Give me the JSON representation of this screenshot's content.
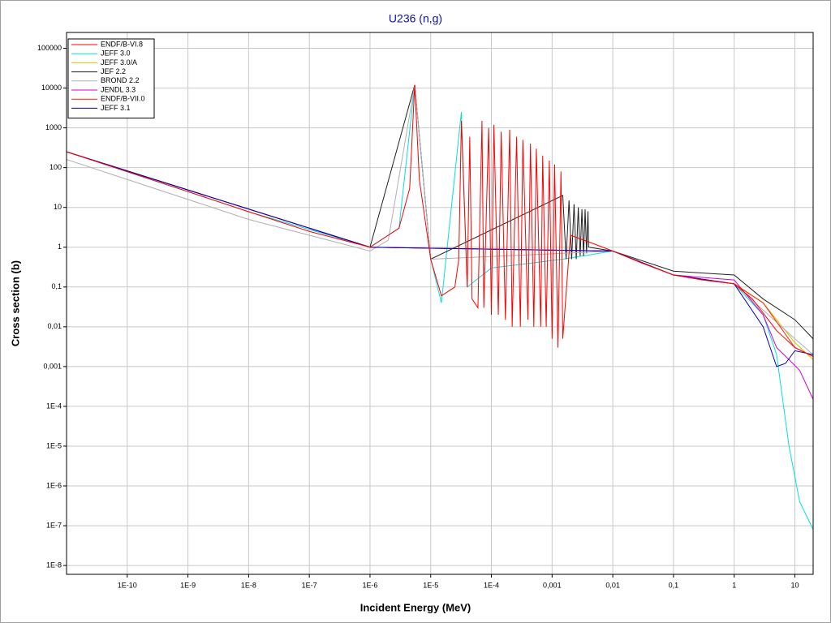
{
  "chart_data": {
    "type": "line",
    "title": "U236 (n,g)",
    "x_label": "Incident Energy (MeV)",
    "y_label": "Cross section (b)",
    "log_x": true,
    "log_y": true,
    "grid": true,
    "legend": "upper left",
    "xlim": [
      1e-11,
      20
    ],
    "ylim": [
      6e-09,
      250000
    ],
    "xticks": [
      {
        "value": 1e-10,
        "label": "1E-10"
      },
      {
        "value": 1e-09,
        "label": "1E-9"
      },
      {
        "value": 1e-08,
        "label": "1E-8"
      },
      {
        "value": 1e-07,
        "label": "1E-7"
      },
      {
        "value": 1e-06,
        "label": "1E-6"
      },
      {
        "value": 1e-05,
        "label": "1E-5"
      },
      {
        "value": 0.0001,
        "label": "1E-4"
      },
      {
        "value": 0.001,
        "label": "0,001"
      },
      {
        "value": 0.01,
        "label": "0,01"
      },
      {
        "value": 0.1,
        "label": "0,1"
      },
      1,
      10
    ],
    "yticks": [
      100000,
      10000,
      1000,
      100,
      10,
      1,
      {
        "value": 0.1,
        "label": "0,1"
      },
      {
        "value": 0.01,
        "label": "0,01"
      },
      {
        "value": 0.001,
        "label": "0,001"
      },
      {
        "value": 0.0001,
        "label": "1E-4"
      },
      {
        "value": 1e-05,
        "label": "1E-5"
      },
      {
        "value": 1e-06,
        "label": "1E-6"
      },
      {
        "value": 1e-07,
        "label": "1E-7"
      },
      {
        "value": 1e-08,
        "label": "1E-8"
      }
    ],
    "series": [
      {
        "name": "ENDF/B-VI.8",
        "color": "#ff0000",
        "x": [
          1e-11,
          1e-09,
          1e-08,
          1e-07,
          1e-06,
          3e-06,
          4.5e-06,
          5.45e-06,
          6.5e-06,
          1e-05,
          1.5e-05,
          2.5e-05,
          2.9e-05,
          3.2e-05,
          4e-05,
          4.4e-05,
          4.8e-05,
          6e-05,
          7e-05,
          7.5e-05,
          9e-05,
          0.0001,
          0.00011,
          0.00013,
          0.000145,
          0.00017,
          0.0002,
          0.00022,
          0.00026,
          0.0003,
          0.00033,
          0.0004,
          0.00044,
          0.0005,
          0.00055,
          0.00065,
          0.0007,
          0.0008,
          0.0009,
          0.001,
          0.0011,
          0.00125,
          0.0014,
          0.0015,
          0.002,
          0.005,
          0.01,
          0.03,
          0.1,
          0.3,
          1,
          2,
          5,
          10,
          20
        ],
        "values": [
          250,
          25,
          7.8,
          2.5,
          1,
          3,
          30,
          12000,
          50,
          0.5,
          0.06,
          0.1,
          0.5,
          1500,
          0.1,
          600,
          0.05,
          0.03,
          1500,
          0.03,
          1000,
          0.02,
          1200,
          0.02,
          800,
          0.015,
          900,
          0.01,
          600,
          0.01,
          500,
          0.015,
          400,
          0.01,
          300,
          0.01,
          200,
          0.01,
          150,
          0.005,
          120,
          0.003,
          80,
          0.005,
          2,
          1.2,
          0.8,
          0.4,
          0.2,
          0.15,
          0.12,
          0.05,
          0.008,
          0.003,
          0.0018
        ]
      },
      {
        "name": "JEFF 3.0",
        "color": "#00e0e0",
        "x": [
          1e-11,
          1e-08,
          1e-06,
          3e-06,
          5.45e-06,
          1e-05,
          1.5e-05,
          3.2e-05,
          4e-05,
          0.0001,
          0.0015,
          0.01,
          0.1,
          1,
          3,
          5,
          8,
          12,
          20
        ],
        "values": [
          250,
          7.8,
          1,
          3,
          12000,
          0.5,
          0.04,
          2500,
          0.1,
          0.3,
          0.5,
          0.8,
          0.2,
          0.12,
          0.02,
          0.002,
          1e-05,
          4e-07,
          8e-08
        ]
      },
      {
        "name": "JEFF 3.0/A",
        "color": "#e0c000",
        "x": [
          1e-11,
          1e-06,
          0.01,
          0.1,
          1,
          3,
          10,
          20
        ],
        "values": [
          250,
          1,
          0.8,
          0.2,
          0.12,
          0.04,
          0.004,
          0.0015
        ]
      },
      {
        "name": "JEF 2.2",
        "color": "#202020",
        "x": [
          1e-11,
          1e-06,
          5.45e-06,
          1e-05,
          0.0015,
          0.0017,
          0.0019,
          0.0021,
          0.0023,
          0.0025,
          0.0027,
          0.0029,
          0.0031,
          0.0033,
          0.0035,
          0.0037,
          0.0039,
          0.004,
          0.01,
          0.1,
          1,
          3,
          10,
          20
        ],
        "values": [
          250,
          1,
          12000,
          0.5,
          20,
          0.5,
          15,
          0.5,
          12,
          0.5,
          10,
          0.6,
          9,
          0.6,
          9,
          0.7,
          8,
          1,
          0.8,
          0.25,
          0.2,
          0.05,
          0.015,
          0.005
        ]
      },
      {
        "name": "BROND 2.2",
        "color": "#b0b0b0",
        "x": [
          1e-11,
          1e-08,
          1e-06,
          2e-06,
          5.45e-06,
          1e-05,
          0.01,
          0.1,
          1,
          10,
          20
        ],
        "values": [
          160,
          5,
          0.8,
          1.5,
          12000,
          0.5,
          0.8,
          0.2,
          0.12,
          0.005,
          0.002
        ]
      },
      {
        "name": "JENDL 3.3",
        "color": "#d000d0",
        "x": [
          1e-11,
          1e-06,
          0.01,
          0.1,
          1,
          3,
          5,
          8,
          12,
          20
        ],
        "values": [
          250,
          1,
          0.8,
          0.2,
          0.15,
          0.02,
          0.003,
          0.0015,
          0.0008,
          0.00015
        ]
      },
      {
        "name": "ENDF/B-VII.0",
        "color": "#ff2000",
        "x": [
          1e-11,
          1e-06,
          0.01,
          0.1,
          1,
          3,
          10,
          20
        ],
        "values": [
          250,
          1,
          0.8,
          0.2,
          0.12,
          0.04,
          0.003,
          0.0018
        ]
      },
      {
        "name": "JEFF 3.1",
        "color": "#0000c0",
        "x": [
          1e-11,
          1e-06,
          0.01,
          0.1,
          1,
          3,
          5,
          7,
          10,
          20
        ],
        "values": [
          250,
          1,
          0.8,
          0.2,
          0.12,
          0.01,
          0.001,
          0.0012,
          0.0025,
          0.002
        ]
      }
    ]
  }
}
